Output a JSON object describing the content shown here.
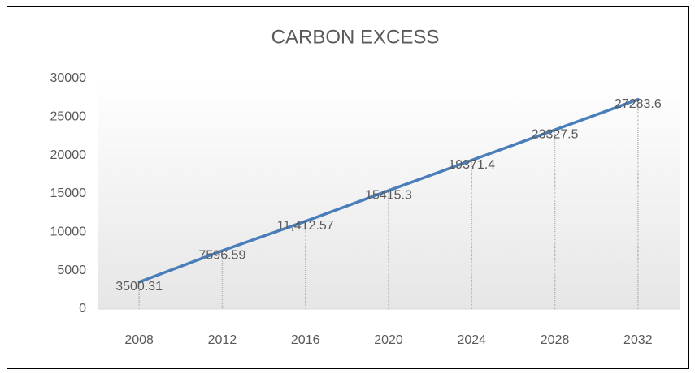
{
  "chart_data": {
    "type": "line",
    "title": "CARBON EXCESS",
    "categories": [
      "2008",
      "2012",
      "2016",
      "2020",
      "2024",
      "2028",
      "2032"
    ],
    "series": [
      {
        "name": "Carbon Excess",
        "color": "#4a7ebb",
        "values": [
          3500.31,
          7596.59,
          11412.57,
          15415.3,
          19371.4,
          23327.5,
          27283.6
        ],
        "value_labels": [
          "3500.31",
          "7596.59",
          "11,412.57",
          "15415.3",
          "19371.4",
          "23327.5",
          "27283.6"
        ]
      }
    ],
    "ylim": [
      0,
      30000
    ],
    "yticks": [
      0,
      5000,
      10000,
      15000,
      20000,
      25000,
      30000
    ],
    "drop_lines": true
  }
}
